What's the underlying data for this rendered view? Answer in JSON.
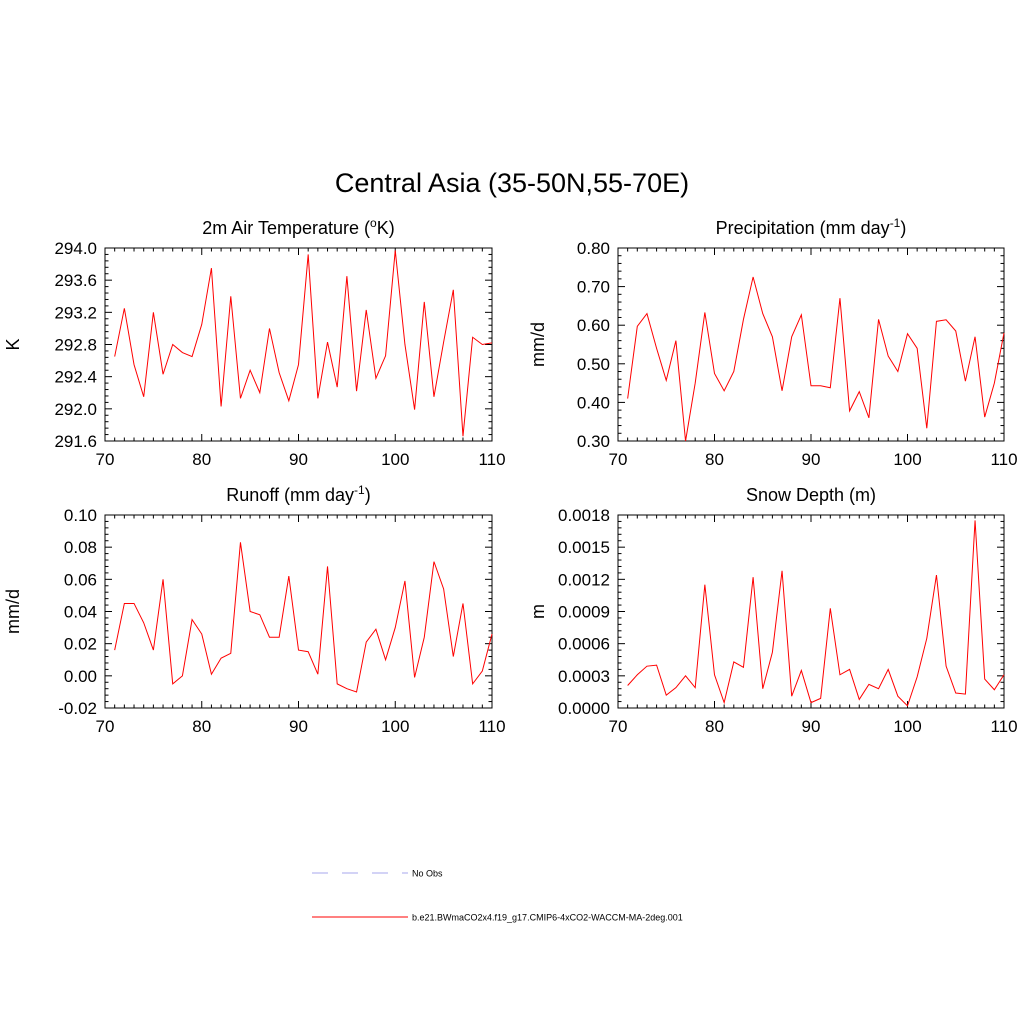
{
  "title": "Central Asia (35-50N,55-70E)",
  "colors": {
    "series": "#ff0000",
    "obs": "#a7a7ee",
    "axis": "#000000",
    "background": "#ffffff"
  },
  "legend": {
    "placement": "bottom",
    "items": [
      {
        "label": "No Obs",
        "style": "dashed",
        "color": "#a7a7ee"
      },
      {
        "label": "b.e21.BWmaCO2x4.f19_g17.CMIP6-4xCO2-WACCM-MA-2deg.001",
        "style": "solid",
        "color": "#ff0000"
      }
    ]
  },
  "chart_data": [
    {
      "type": "line",
      "title": "2m Air Temperature (oK)",
      "title_main": "2m Air Temperature (",
      "title_sup": "o",
      "title_tail": "K)",
      "ylabel": "K",
      "xlim": [
        70,
        110
      ],
      "ylim": [
        291.6,
        294.0
      ],
      "x_ticks": [
        "70",
        "80",
        "90",
        "100",
        "110"
      ],
      "y_ticks": [
        "291.6",
        "292.0",
        "292.4",
        "292.8",
        "293.2",
        "293.6",
        "294.0"
      ],
      "x": [
        71,
        72,
        73,
        74,
        75,
        76,
        77,
        78,
        79,
        80,
        81,
        82,
        83,
        84,
        85,
        86,
        87,
        88,
        89,
        90,
        91,
        92,
        93,
        94,
        95,
        96,
        97,
        98,
        99,
        100,
        101,
        102,
        103,
        104,
        105,
        106,
        107,
        108,
        109,
        110
      ],
      "series": [
        {
          "values": [
            292.65,
            293.25,
            292.55,
            292.15,
            293.2,
            292.43,
            292.8,
            292.7,
            292.65,
            293.05,
            293.75,
            292.03,
            293.4,
            292.13,
            292.48,
            292.2,
            293.0,
            292.45,
            292.1,
            292.55,
            293.92,
            292.13,
            292.83,
            292.27,
            293.65,
            292.22,
            293.23,
            292.38,
            292.66,
            293.97,
            292.8,
            291.99,
            293.33,
            292.15,
            292.83,
            293.48,
            291.66,
            292.89,
            292.8,
            292.82
          ]
        }
      ]
    },
    {
      "type": "line",
      "title": "Precipitation (mm day-1)",
      "title_main": "Precipitation (mm day",
      "title_sup": "-1",
      "title_tail": ")",
      "ylabel": "mm/d",
      "xlim": [
        70,
        110
      ],
      "ylim": [
        0.3,
        0.8
      ],
      "x_ticks": [
        "70",
        "80",
        "90",
        "100",
        "110"
      ],
      "y_ticks": [
        "0.30",
        "0.40",
        "0.50",
        "0.60",
        "0.70",
        "0.80"
      ],
      "x": [
        71,
        72,
        73,
        74,
        75,
        76,
        77,
        78,
        79,
        80,
        81,
        82,
        83,
        84,
        85,
        86,
        87,
        88,
        89,
        90,
        91,
        92,
        93,
        94,
        95,
        96,
        97,
        98,
        99,
        100,
        101,
        102,
        103,
        104,
        105,
        106,
        107,
        108,
        109,
        110
      ],
      "series": [
        {
          "values": [
            0.41,
            0.597,
            0.63,
            0.54,
            0.457,
            0.56,
            0.3,
            0.45,
            0.633,
            0.475,
            0.43,
            0.48,
            0.615,
            0.725,
            0.63,
            0.57,
            0.43,
            0.57,
            0.627,
            0.443,
            0.443,
            0.438,
            0.67,
            0.378,
            0.428,
            0.36,
            0.615,
            0.52,
            0.48,
            0.578,
            0.54,
            0.333,
            0.61,
            0.614,
            0.585,
            0.455,
            0.57,
            0.362,
            0.45,
            0.58
          ]
        }
      ]
    },
    {
      "type": "line",
      "title": "Runoff (mm day-1)",
      "title_main": "Runoff (mm day",
      "title_sup": "-1",
      "title_tail": ")",
      "ylabel": "mm/d",
      "xlim": [
        70,
        110
      ],
      "ylim": [
        -0.02,
        0.1
      ],
      "x_ticks": [
        "70",
        "80",
        "90",
        "100",
        "110"
      ],
      "y_ticks": [
        "-0.02",
        "0.00",
        "0.02",
        "0.04",
        "0.06",
        "0.08",
        "0.10"
      ],
      "x": [
        71,
        72,
        73,
        74,
        75,
        76,
        77,
        78,
        79,
        80,
        81,
        82,
        83,
        84,
        85,
        86,
        87,
        88,
        89,
        90,
        91,
        92,
        93,
        94,
        95,
        96,
        97,
        98,
        99,
        100,
        101,
        102,
        103,
        104,
        105,
        106,
        107,
        108,
        109,
        110
      ],
      "series": [
        {
          "values": [
            0.016,
            0.045,
            0.045,
            0.033,
            0.016,
            0.06,
            -0.005,
            0.0,
            0.035,
            0.026,
            0.001,
            0.011,
            0.014,
            0.083,
            0.04,
            0.038,
            0.024,
            0.024,
            0.062,
            0.016,
            0.015,
            0.001,
            0.068,
            -0.005,
            -0.008,
            -0.01,
            0.021,
            0.029,
            0.01,
            0.03,
            0.059,
            -0.001,
            0.024,
            0.071,
            0.054,
            0.012,
            0.045,
            -0.005,
            0.003,
            0.026
          ]
        }
      ]
    },
    {
      "type": "line",
      "title": "Snow Depth (m)",
      "title_main": "Snow Depth (m)",
      "title_sup": "",
      "title_tail": "",
      "ylabel": "m",
      "xlim": [
        70,
        110
      ],
      "ylim": [
        0.0,
        0.0018
      ],
      "x_ticks": [
        "70",
        "80",
        "90",
        "100",
        "110"
      ],
      "y_ticks": [
        "0.0000",
        "0.0003",
        "0.0006",
        "0.0009",
        "0.0012",
        "0.0015",
        "0.0018"
      ],
      "x": [
        71,
        72,
        73,
        74,
        75,
        76,
        77,
        78,
        79,
        80,
        81,
        82,
        83,
        84,
        85,
        86,
        87,
        88,
        89,
        90,
        91,
        92,
        93,
        94,
        95,
        96,
        97,
        98,
        99,
        100,
        101,
        102,
        103,
        104,
        105,
        106,
        107,
        108,
        109,
        110
      ],
      "series": [
        {
          "values": [
            0.00021,
            0.00031,
            0.00039,
            0.0004,
            0.00012,
            0.00019,
            0.0003,
            0.00019,
            0.00115,
            0.00031,
            5e-05,
            0.00043,
            0.00038,
            0.00122,
            0.00018,
            0.00052,
            0.00128,
            0.00011,
            0.00035,
            5e-05,
            9e-05,
            0.00093,
            0.00031,
            0.00036,
            8e-05,
            0.00022,
            0.00018,
            0.00036,
            0.00011,
            2e-05,
            0.00029,
            0.00065,
            0.00124,
            0.00039,
            0.00014,
            0.00013,
            0.00175,
            0.00027,
            0.00017,
            0.00031
          ]
        }
      ]
    }
  ]
}
